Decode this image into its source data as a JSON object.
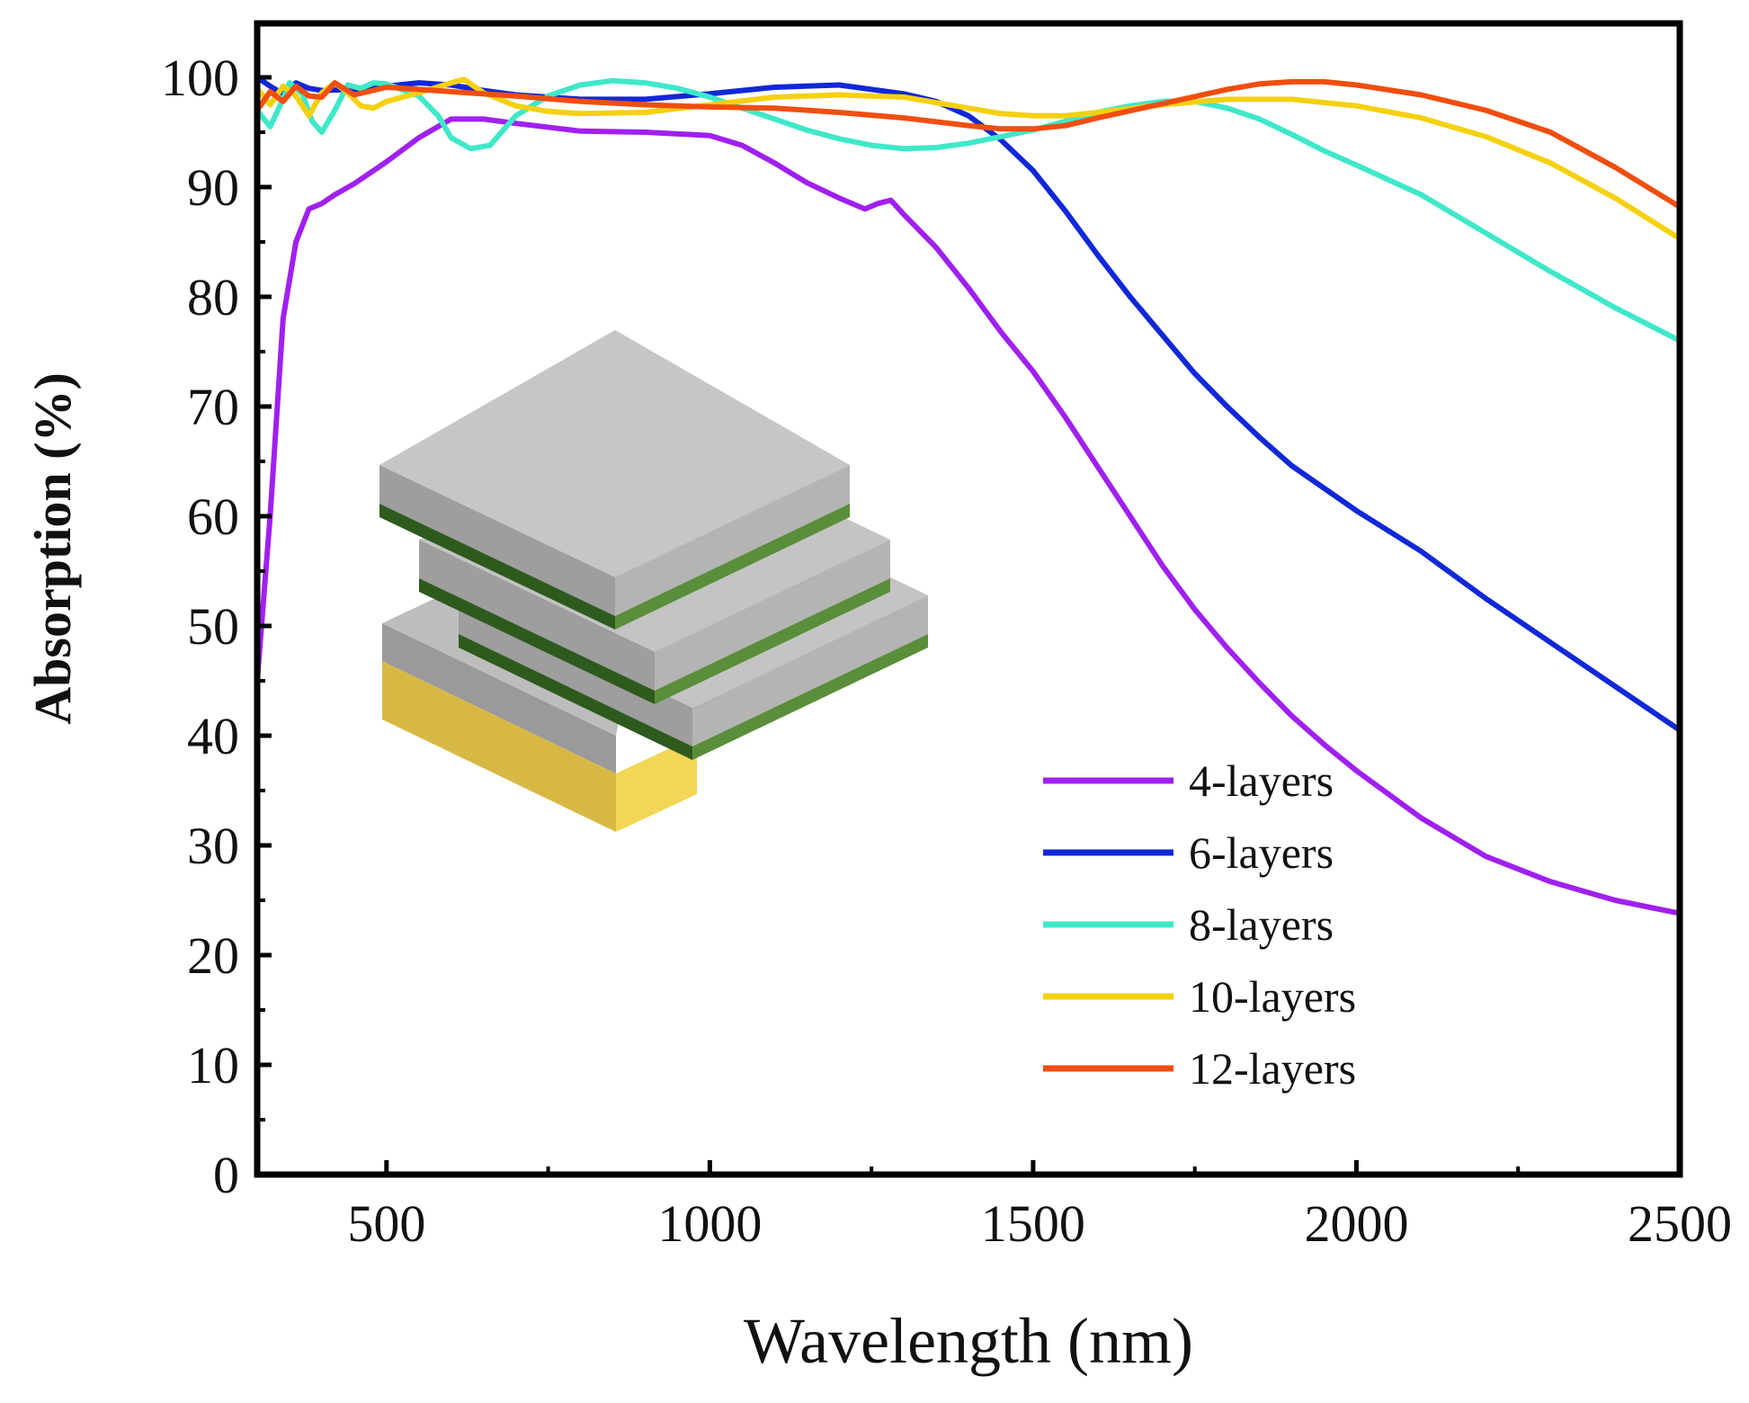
{
  "chart_data": {
    "type": "line",
    "title": "",
    "xlabel": "Wavelength (nm)",
    "ylabel": "Absorption (%)",
    "xlim": [
      300,
      2500
    ],
    "ylim": [
      0,
      105
    ],
    "xticks": [
      500,
      1000,
      1500,
      2000,
      2500
    ],
    "xtick_labels": [
      "500",
      "1000",
      "1500",
      "2000",
      "2500"
    ],
    "yticks": [
      0,
      10,
      20,
      30,
      40,
      50,
      60,
      70,
      80,
      90,
      100
    ],
    "ytick_labels": [
      "0",
      "10",
      "20",
      "30",
      "40",
      "50",
      "60",
      "70",
      "80",
      "90",
      "100"
    ],
    "legend_position": "lower-right",
    "series": [
      {
        "name": "4-layers",
        "color": "#a020f0",
        "points": [
          [
            300,
            45
          ],
          [
            320,
            60
          ],
          [
            340,
            78
          ],
          [
            360,
            85
          ],
          [
            380,
            88
          ],
          [
            400,
            88.5
          ],
          [
            420,
            89.3
          ],
          [
            450,
            90.3
          ],
          [
            500,
            92.3
          ],
          [
            550,
            94.5
          ],
          [
            600,
            96.2
          ],
          [
            650,
            96.2
          ],
          [
            700,
            95.8
          ],
          [
            800,
            95.1
          ],
          [
            900,
            95
          ],
          [
            1000,
            94.7
          ],
          [
            1050,
            93.8
          ],
          [
            1100,
            92.2
          ],
          [
            1150,
            90.4
          ],
          [
            1200,
            89
          ],
          [
            1240,
            88
          ],
          [
            1260,
            88.5
          ],
          [
            1280,
            88.8
          ],
          [
            1300,
            87.5
          ],
          [
            1350,
            84.5
          ],
          [
            1400,
            80.8
          ],
          [
            1450,
            76.8
          ],
          [
            1500,
            73.2
          ],
          [
            1550,
            69
          ],
          [
            1600,
            64.5
          ],
          [
            1650,
            60
          ],
          [
            1700,
            55.5
          ],
          [
            1750,
            51.5
          ],
          [
            1800,
            48
          ],
          [
            1850,
            44.8
          ],
          [
            1900,
            41.8
          ],
          [
            1950,
            39.2
          ],
          [
            2000,
            36.8
          ],
          [
            2100,
            32.5
          ],
          [
            2200,
            29
          ],
          [
            2300,
            26.7
          ],
          [
            2400,
            25
          ],
          [
            2500,
            23.8
          ]
        ]
      },
      {
        "name": "6-layers",
        "color": "#1028d8",
        "points": [
          [
            300,
            100
          ],
          [
            320,
            99.2
          ],
          [
            340,
            98.5
          ],
          [
            360,
            99.5
          ],
          [
            380,
            99
          ],
          [
            400,
            98.8
          ],
          [
            450,
            98.9
          ],
          [
            500,
            99.2
          ],
          [
            550,
            99.5
          ],
          [
            600,
            99.3
          ],
          [
            650,
            98.8
          ],
          [
            700,
            98.4
          ],
          [
            800,
            98
          ],
          [
            900,
            98
          ],
          [
            1000,
            98.5
          ],
          [
            1100,
            99.1
          ],
          [
            1200,
            99.3
          ],
          [
            1300,
            98.5
          ],
          [
            1350,
            97.8
          ],
          [
            1400,
            96.5
          ],
          [
            1450,
            94.3
          ],
          [
            1500,
            91.5
          ],
          [
            1550,
            87.8
          ],
          [
            1600,
            83.8
          ],
          [
            1650,
            80
          ],
          [
            1700,
            76.5
          ],
          [
            1750,
            73
          ],
          [
            1800,
            70
          ],
          [
            1850,
            67.2
          ],
          [
            1900,
            64.6
          ],
          [
            2000,
            60.5
          ],
          [
            2100,
            56.8
          ],
          [
            2200,
            52.5
          ],
          [
            2300,
            48.5
          ],
          [
            2400,
            44.5
          ],
          [
            2500,
            40.5
          ]
        ]
      },
      {
        "name": "8-layers",
        "color": "#3ee8c8",
        "points": [
          [
            300,
            97
          ],
          [
            320,
            95.5
          ],
          [
            340,
            98
          ],
          [
            350,
            99.5
          ],
          [
            370,
            98.5
          ],
          [
            385,
            96
          ],
          [
            400,
            95
          ],
          [
            420,
            97
          ],
          [
            440,
            99.3
          ],
          [
            460,
            99
          ],
          [
            480,
            99.5
          ],
          [
            500,
            99.4
          ],
          [
            550,
            98.3
          ],
          [
            580,
            96.5
          ],
          [
            600,
            94.5
          ],
          [
            630,
            93.5
          ],
          [
            660,
            93.8
          ],
          [
            700,
            96.5
          ],
          [
            750,
            98.3
          ],
          [
            800,
            99.3
          ],
          [
            850,
            99.7
          ],
          [
            900,
            99.5
          ],
          [
            950,
            99
          ],
          [
            1000,
            98.2
          ],
          [
            1050,
            97.2
          ],
          [
            1100,
            96.2
          ],
          [
            1150,
            95.2
          ],
          [
            1200,
            94.4
          ],
          [
            1250,
            93.8
          ],
          [
            1300,
            93.5
          ],
          [
            1350,
            93.6
          ],
          [
            1400,
            94
          ],
          [
            1450,
            94.6
          ],
          [
            1500,
            95.2
          ],
          [
            1550,
            96
          ],
          [
            1600,
            96.8
          ],
          [
            1650,
            97.4
          ],
          [
            1700,
            97.8
          ],
          [
            1750,
            97.8
          ],
          [
            1800,
            97.2
          ],
          [
            1850,
            96.2
          ],
          [
            1900,
            94.8
          ],
          [
            1950,
            93.3
          ],
          [
            2000,
            92
          ],
          [
            2100,
            89.3
          ],
          [
            2200,
            85.8
          ],
          [
            2300,
            82.3
          ],
          [
            2400,
            79
          ],
          [
            2500,
            76
          ]
        ]
      },
      {
        "name": "10-layers",
        "color": "#f5d010",
        "points": [
          [
            300,
            99
          ],
          [
            320,
            97.5
          ],
          [
            340,
            99.2
          ],
          [
            360,
            98.3
          ],
          [
            380,
            96.5
          ],
          [
            400,
            98.6
          ],
          [
            420,
            99.5
          ],
          [
            440,
            98.6
          ],
          [
            460,
            97.4
          ],
          [
            480,
            97.2
          ],
          [
            500,
            97.8
          ],
          [
            550,
            98.6
          ],
          [
            600,
            99.5
          ],
          [
            620,
            99.8
          ],
          [
            650,
            98.6
          ],
          [
            700,
            97.4
          ],
          [
            750,
            96.9
          ],
          [
            800,
            96.7
          ],
          [
            900,
            96.8
          ],
          [
            1000,
            97.5
          ],
          [
            1100,
            98.2
          ],
          [
            1200,
            98.4
          ],
          [
            1300,
            98.2
          ],
          [
            1400,
            97.2
          ],
          [
            1450,
            96.7
          ],
          [
            1500,
            96.5
          ],
          [
            1550,
            96.5
          ],
          [
            1600,
            96.8
          ],
          [
            1700,
            97.5
          ],
          [
            1800,
            98
          ],
          [
            1900,
            98
          ],
          [
            2000,
            97.4
          ],
          [
            2100,
            96.3
          ],
          [
            2200,
            94.6
          ],
          [
            2300,
            92.2
          ],
          [
            2400,
            89
          ],
          [
            2500,
            85.3
          ]
        ]
      },
      {
        "name": "12-layers",
        "color": "#f04e10",
        "points": [
          [
            300,
            97
          ],
          [
            320,
            98.7
          ],
          [
            340,
            97.8
          ],
          [
            360,
            99.2
          ],
          [
            380,
            98.3
          ],
          [
            400,
            98.2
          ],
          [
            420,
            99.5
          ],
          [
            450,
            98.4
          ],
          [
            500,
            99.1
          ],
          [
            550,
            98.9
          ],
          [
            600,
            98.7
          ],
          [
            700,
            98.3
          ],
          [
            800,
            97.8
          ],
          [
            900,
            97.5
          ],
          [
            1000,
            97.3
          ],
          [
            1100,
            97.2
          ],
          [
            1200,
            96.8
          ],
          [
            1300,
            96.3
          ],
          [
            1400,
            95.6
          ],
          [
            1450,
            95.3
          ],
          [
            1500,
            95.3
          ],
          [
            1550,
            95.6
          ],
          [
            1600,
            96.3
          ],
          [
            1700,
            97.6
          ],
          [
            1800,
            98.9
          ],
          [
            1850,
            99.4
          ],
          [
            1900,
            99.6
          ],
          [
            1950,
            99.6
          ],
          [
            2000,
            99.3
          ],
          [
            2100,
            98.4
          ],
          [
            2200,
            97
          ],
          [
            2300,
            95
          ],
          [
            2400,
            91.8
          ],
          [
            2500,
            88.2
          ]
        ]
      }
    ]
  }
}
